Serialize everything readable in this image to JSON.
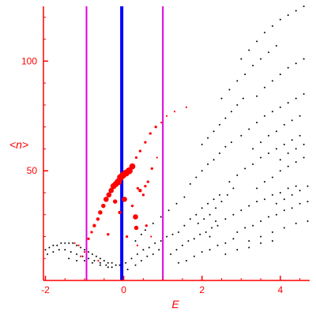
{
  "chart_data": {
    "type": "scatter",
    "title": "",
    "xlabel": "E",
    "ylabel": "<n>",
    "xlim": [
      -2.05,
      4.75
    ],
    "ylim": [
      0,
      125
    ],
    "x_ticks": [
      -2,
      0,
      2,
      4
    ],
    "x_tick_labels": [
      "-2",
      "0",
      "2",
      "4"
    ],
    "y_ticks": [
      50,
      100
    ],
    "y_tick_labels": [
      "50",
      "100"
    ],
    "grid": false,
    "vertical_lines": [
      {
        "x": -0.95,
        "color": "#e000e0",
        "style": "thin"
      },
      {
        "x": -0.05,
        "color": "#0000ff",
        "style": "thick"
      },
      {
        "x": 1.0,
        "color": "#e000e0",
        "style": "thin"
      }
    ],
    "colors": {
      "axis": "#ff0000",
      "labels": "#ff0000",
      "highlighted_points": "#ff0000",
      "background_points": "#000000",
      "window_lines": "#e000e0",
      "center_line": "#0000ff"
    },
    "series": [
      {
        "color": "#ff0000",
        "marker": "filled circle, size varies",
        "points": [
          {
            "x": -1.25,
            "y": 17,
            "size": 2
          },
          {
            "x": -1.15,
            "y": 16,
            "size": 2
          },
          {
            "x": -1.0,
            "y": 13,
            "size": 2
          },
          {
            "x": -0.9,
            "y": 19,
            "size": 3
          },
          {
            "x": -0.82,
            "y": 22,
            "size": 3
          },
          {
            "x": -0.75,
            "y": 25,
            "size": 4
          },
          {
            "x": -0.66,
            "y": 28,
            "size": 4
          },
          {
            "x": -0.6,
            "y": 31,
            "size": 5
          },
          {
            "x": -0.52,
            "y": 34,
            "size": 5
          },
          {
            "x": -0.45,
            "y": 37,
            "size": 6
          },
          {
            "x": -0.38,
            "y": 39,
            "size": 6
          },
          {
            "x": -0.32,
            "y": 41,
            "size": 6
          },
          {
            "x": -0.26,
            "y": 43,
            "size": 7
          },
          {
            "x": -0.2,
            "y": 44,
            "size": 7
          },
          {
            "x": -0.14,
            "y": 45,
            "size": 8
          },
          {
            "x": -0.08,
            "y": 47,
            "size": 8
          },
          {
            "x": -0.02,
            "y": 48,
            "size": 8
          },
          {
            "x": 0.06,
            "y": 49,
            "size": 8
          },
          {
            "x": 0.14,
            "y": 50,
            "size": 8
          },
          {
            "x": 0.22,
            "y": 52,
            "size": 7
          },
          {
            "x": 0.32,
            "y": 56,
            "size": 3
          },
          {
            "x": 0.42,
            "y": 59,
            "size": 3
          },
          {
            "x": 0.55,
            "y": 63,
            "size": 3
          },
          {
            "x": 0.68,
            "y": 67,
            "size": 3
          },
          {
            "x": 0.82,
            "y": 70,
            "size": 3
          },
          {
            "x": 0.96,
            "y": 72,
            "size": 2
          },
          {
            "x": 1.1,
            "y": 75,
            "size": 2
          },
          {
            "x": 1.3,
            "y": 77,
            "size": 2
          },
          {
            "x": 1.6,
            "y": 79,
            "size": 2
          },
          {
            "x": -0.22,
            "y": 36,
            "size": 5
          },
          {
            "x": 0.02,
            "y": 37,
            "size": 6
          },
          {
            "x": 0.22,
            "y": 34,
            "size": 3
          },
          {
            "x": 0.5,
            "y": 39,
            "size": 3
          },
          {
            "x": 0.55,
            "y": 43,
            "size": 3
          },
          {
            "x": 0.42,
            "y": 41,
            "size": 4
          },
          {
            "x": 0.36,
            "y": 42,
            "size": 3
          },
          {
            "x": 0.62,
            "y": 45,
            "size": 3
          },
          {
            "x": 0.72,
            "y": 51,
            "size": 3
          },
          {
            "x": 0.85,
            "y": 56,
            "size": 2
          },
          {
            "x": -0.1,
            "y": 31,
            "size": 4
          },
          {
            "x": 0.3,
            "y": 29,
            "size": 6
          },
          {
            "x": 0.32,
            "y": 24,
            "size": 5
          },
          {
            "x": 0.58,
            "y": 25,
            "size": 3
          },
          {
            "x": -0.4,
            "y": 21,
            "size": 3
          },
          {
            "x": 0.08,
            "y": 20,
            "size": 3
          },
          {
            "x": 0.35,
            "y": 16,
            "size": 2
          },
          {
            "x": 0.7,
            "y": 20,
            "size": 2
          },
          {
            "x": -1.1,
            "y": 11,
            "size": 2
          },
          {
            "x": -0.65,
            "y": 9,
            "size": 2
          }
        ]
      },
      {
        "color": "#000000",
        "marker": "small dot",
        "points": [
          {
            "x": -2.0,
            "y": 14
          },
          {
            "x": -1.9,
            "y": 15
          },
          {
            "x": -1.8,
            "y": 16
          },
          {
            "x": -1.7,
            "y": 16
          },
          {
            "x": -1.6,
            "y": 17
          },
          {
            "x": -1.5,
            "y": 17
          },
          {
            "x": -1.4,
            "y": 17
          },
          {
            "x": -1.3,
            "y": 17
          },
          {
            "x": -1.2,
            "y": 16
          },
          {
            "x": -1.1,
            "y": 15
          },
          {
            "x": -1.0,
            "y": 14
          },
          {
            "x": -0.9,
            "y": 13
          },
          {
            "x": -0.8,
            "y": 12
          },
          {
            "x": -0.7,
            "y": 11
          },
          {
            "x": -0.6,
            "y": 10
          },
          {
            "x": -0.5,
            "y": 9
          },
          {
            "x": -0.4,
            "y": 8
          },
          {
            "x": -0.3,
            "y": 8
          },
          {
            "x": -0.2,
            "y": 7
          },
          {
            "x": -0.1,
            "y": 7
          },
          {
            "x": -1.95,
            "y": 12
          },
          {
            "x": -1.8,
            "y": 13
          },
          {
            "x": -1.65,
            "y": 14
          },
          {
            "x": -1.5,
            "y": 14
          },
          {
            "x": -1.35,
            "y": 13
          },
          {
            "x": -1.2,
            "y": 12
          },
          {
            "x": -1.05,
            "y": 11
          },
          {
            "x": -0.9,
            "y": 10
          },
          {
            "x": -0.75,
            "y": 9
          },
          {
            "x": -0.6,
            "y": 8
          },
          {
            "x": -0.45,
            "y": 7
          },
          {
            "x": -0.3,
            "y": 6
          },
          {
            "x": -1.4,
            "y": 10
          },
          {
            "x": -1.2,
            "y": 9
          },
          {
            "x": -1.0,
            "y": 9
          },
          {
            "x": -0.8,
            "y": 8
          },
          {
            "x": -0.6,
            "y": 7
          },
          {
            "x": -0.4,
            "y": 6
          },
          {
            "x": 0.05,
            "y": 8
          },
          {
            "x": 0.2,
            "y": 10
          },
          {
            "x": 0.35,
            "y": 12
          },
          {
            "x": 0.5,
            "y": 14
          },
          {
            "x": 0.65,
            "y": 15
          },
          {
            "x": 0.8,
            "y": 17
          },
          {
            "x": 0.95,
            "y": 18
          },
          {
            "x": 1.1,
            "y": 20
          },
          {
            "x": 1.25,
            "y": 21
          },
          {
            "x": 0.1,
            "y": 5
          },
          {
            "x": 0.3,
            "y": 7
          },
          {
            "x": 0.45,
            "y": 9
          },
          {
            "x": 0.6,
            "y": 11
          },
          {
            "x": 0.75,
            "y": 12
          },
          {
            "x": 0.9,
            "y": 14
          },
          {
            "x": 0.3,
            "y": 18
          },
          {
            "x": 0.45,
            "y": 21
          },
          {
            "x": 0.55,
            "y": 23
          },
          {
            "x": 0.75,
            "y": 26
          },
          {
            "x": 0.95,
            "y": 29
          },
          {
            "x": 1.15,
            "y": 32
          },
          {
            "x": 1.35,
            "y": 35
          },
          {
            "x": 1.55,
            "y": 38
          },
          {
            "x": 1.4,
            "y": 22
          },
          {
            "x": 1.55,
            "y": 25
          },
          {
            "x": 1.7,
            "y": 28
          },
          {
            "x": 1.85,
            "y": 30
          },
          {
            "x": 2.0,
            "y": 33
          },
          {
            "x": 2.15,
            "y": 35
          },
          {
            "x": 2.3,
            "y": 37
          },
          {
            "x": 2.45,
            "y": 39
          },
          {
            "x": 1.2,
            "y": 12
          },
          {
            "x": 1.35,
            "y": 14
          },
          {
            "x": 1.5,
            "y": 16
          },
          {
            "x": 1.65,
            "y": 18
          },
          {
            "x": 1.8,
            "y": 19
          },
          {
            "x": 1.95,
            "y": 21
          },
          {
            "x": 2.1,
            "y": 22
          },
          {
            "x": 2.25,
            "y": 24
          },
          {
            "x": 2.4,
            "y": 25
          },
          {
            "x": 1.4,
            "y": 8
          },
          {
            "x": 1.6,
            "y": 9
          },
          {
            "x": 1.8,
            "y": 11
          },
          {
            "x": 2.0,
            "y": 13
          },
          {
            "x": 2.2,
            "y": 14
          },
          {
            "x": 2.4,
            "y": 16
          },
          {
            "x": 2.6,
            "y": 17
          },
          {
            "x": 2.8,
            "y": 19
          },
          {
            "x": 1.7,
            "y": 44
          },
          {
            "x": 1.85,
            "y": 47
          },
          {
            "x": 2.0,
            "y": 50
          },
          {
            "x": 2.15,
            "y": 53
          },
          {
            "x": 2.3,
            "y": 55
          },
          {
            "x": 2.45,
            "y": 58
          },
          {
            "x": 2.6,
            "y": 61
          },
          {
            "x": 2.75,
            "y": 63
          },
          {
            "x": 2.0,
            "y": 62
          },
          {
            "x": 2.15,
            "y": 65
          },
          {
            "x": 2.3,
            "y": 68
          },
          {
            "x": 2.45,
            "y": 71
          },
          {
            "x": 2.6,
            "y": 74
          },
          {
            "x": 2.75,
            "y": 77
          },
          {
            "x": 2.9,
            "y": 80
          },
          {
            "x": 3.05,
            "y": 83
          },
          {
            "x": 2.5,
            "y": 83
          },
          {
            "x": 2.7,
            "y": 87
          },
          {
            "x": 2.9,
            "y": 91
          },
          {
            "x": 3.1,
            "y": 94
          },
          {
            "x": 3.3,
            "y": 98
          },
          {
            "x": 3.5,
            "y": 101
          },
          {
            "x": 3.7,
            "y": 104
          },
          {
            "x": 3.9,
            "y": 107
          },
          {
            "x": 3.0,
            "y": 101
          },
          {
            "x": 3.2,
            "y": 105
          },
          {
            "x": 3.4,
            "y": 109
          },
          {
            "x": 3.6,
            "y": 113
          },
          {
            "x": 3.8,
            "y": 116
          },
          {
            "x": 4.0,
            "y": 119
          },
          {
            "x": 4.2,
            "y": 121
          },
          {
            "x": 4.4,
            "y": 123
          },
          {
            "x": 4.6,
            "y": 125
          },
          {
            "x": 2.6,
            "y": 28
          },
          {
            "x": 2.8,
            "y": 30
          },
          {
            "x": 3.0,
            "y": 32
          },
          {
            "x": 3.2,
            "y": 34
          },
          {
            "x": 3.4,
            "y": 36
          },
          {
            "x": 3.6,
            "y": 37
          },
          {
            "x": 3.8,
            "y": 39
          },
          {
            "x": 4.0,
            "y": 40
          },
          {
            "x": 4.2,
            "y": 42
          },
          {
            "x": 4.4,
            "y": 43
          },
          {
            "x": 2.7,
            "y": 45
          },
          {
            "x": 2.9,
            "y": 48
          },
          {
            "x": 3.1,
            "y": 51
          },
          {
            "x": 3.3,
            "y": 53
          },
          {
            "x": 3.5,
            "y": 56
          },
          {
            "x": 3.7,
            "y": 58
          },
          {
            "x": 3.9,
            "y": 60
          },
          {
            "x": 4.1,
            "y": 62
          },
          {
            "x": 4.3,
            "y": 64
          },
          {
            "x": 4.5,
            "y": 66
          },
          {
            "x": 3.0,
            "y": 66
          },
          {
            "x": 3.2,
            "y": 69
          },
          {
            "x": 3.4,
            "y": 72
          },
          {
            "x": 3.6,
            "y": 75
          },
          {
            "x": 3.8,
            "y": 77
          },
          {
            "x": 4.0,
            "y": 79
          },
          {
            "x": 4.2,
            "y": 81
          },
          {
            "x": 4.4,
            "y": 83
          },
          {
            "x": 4.6,
            "y": 85
          },
          {
            "x": 3.4,
            "y": 84
          },
          {
            "x": 3.6,
            "y": 88
          },
          {
            "x": 3.8,
            "y": 91
          },
          {
            "x": 4.0,
            "y": 94
          },
          {
            "x": 4.2,
            "y": 97
          },
          {
            "x": 4.4,
            "y": 99
          },
          {
            "x": 4.6,
            "y": 101
          },
          {
            "x": 2.9,
            "y": 22
          },
          {
            "x": 3.1,
            "y": 24
          },
          {
            "x": 3.3,
            "y": 25
          },
          {
            "x": 3.5,
            "y": 27
          },
          {
            "x": 3.7,
            "y": 29
          },
          {
            "x": 3.9,
            "y": 30
          },
          {
            "x": 4.1,
            "y": 32
          },
          {
            "x": 4.3,
            "y": 33
          },
          {
            "x": 4.5,
            "y": 35
          },
          {
            "x": 4.7,
            "y": 36
          },
          {
            "x": 3.2,
            "y": 18
          },
          {
            "x": 3.5,
            "y": 20
          },
          {
            "x": 3.8,
            "y": 22
          },
          {
            "x": 4.1,
            "y": 24
          },
          {
            "x": 4.4,
            "y": 26
          },
          {
            "x": 4.7,
            "y": 27
          },
          {
            "x": 3.4,
            "y": 42
          },
          {
            "x": 3.6,
            "y": 45
          },
          {
            "x": 3.8,
            "y": 47
          },
          {
            "x": 4.0,
            "y": 50
          },
          {
            "x": 4.2,
            "y": 52
          },
          {
            "x": 4.4,
            "y": 54
          },
          {
            "x": 4.6,
            "y": 56
          },
          {
            "x": 3.3,
            "y": 60
          },
          {
            "x": 3.5,
            "y": 63
          },
          {
            "x": 3.7,
            "y": 66
          },
          {
            "x": 3.9,
            "y": 68
          },
          {
            "x": 4.1,
            "y": 71
          },
          {
            "x": 4.3,
            "y": 73
          },
          {
            "x": 4.5,
            "y": 75
          },
          {
            "x": 3.9,
            "y": 35
          },
          {
            "x": 4.1,
            "y": 37
          },
          {
            "x": 4.3,
            "y": 39
          },
          {
            "x": 4.5,
            "y": 41
          },
          {
            "x": 4.7,
            "y": 43
          },
          {
            "x": 4.0,
            "y": 55
          },
          {
            "x": 4.2,
            "y": 58
          },
          {
            "x": 4.4,
            "y": 60
          },
          {
            "x": 4.6,
            "y": 62
          },
          {
            "x": 2.2,
            "y": 30
          },
          {
            "x": 2.35,
            "y": 33
          },
          {
            "x": 2.5,
            "y": 36
          },
          {
            "x": 2.65,
            "y": 39
          },
          {
            "x": 2.8,
            "y": 42
          },
          {
            "x": 1.9,
            "y": 26
          },
          {
            "x": 2.05,
            "y": 28
          },
          {
            "x": 2.2,
            "y": 20
          },
          {
            "x": 2.35,
            "y": 27
          },
          {
            "x": 2.6,
            "y": 12
          },
          {
            "x": 2.9,
            "y": 14
          },
          {
            "x": 3.2,
            "y": 15
          },
          {
            "x": 3.5,
            "y": 17
          },
          {
            "x": 3.8,
            "y": 18
          }
        ]
      }
    ]
  }
}
